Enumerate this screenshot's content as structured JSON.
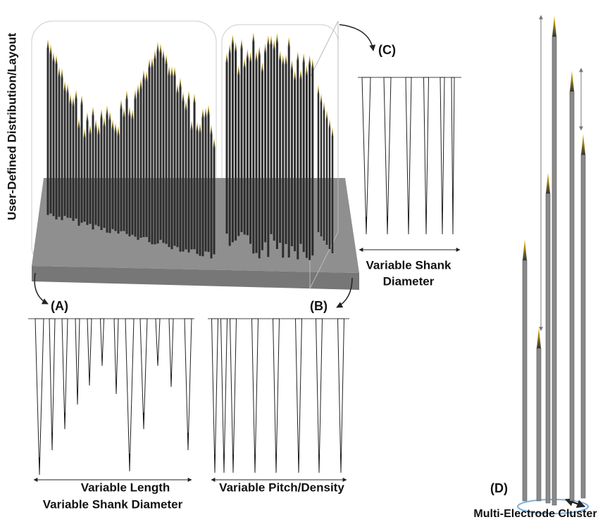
{
  "side_label": "User-Defined Distribution/Layout",
  "panels": {
    "a": {
      "tag": "(A)",
      "caption": [
        "Variable Length",
        "Variable Shank Diameter"
      ]
    },
    "b": {
      "tag": "(B)",
      "caption": [
        "Variable Pitch/Density"
      ]
    },
    "c": {
      "tag": "(C)",
      "caption": [
        "Variable Shank",
        "Diameter"
      ]
    },
    "d": {
      "tag": "(D)",
      "caption": [
        "Multi-Electrode Cluster"
      ]
    }
  }
}
